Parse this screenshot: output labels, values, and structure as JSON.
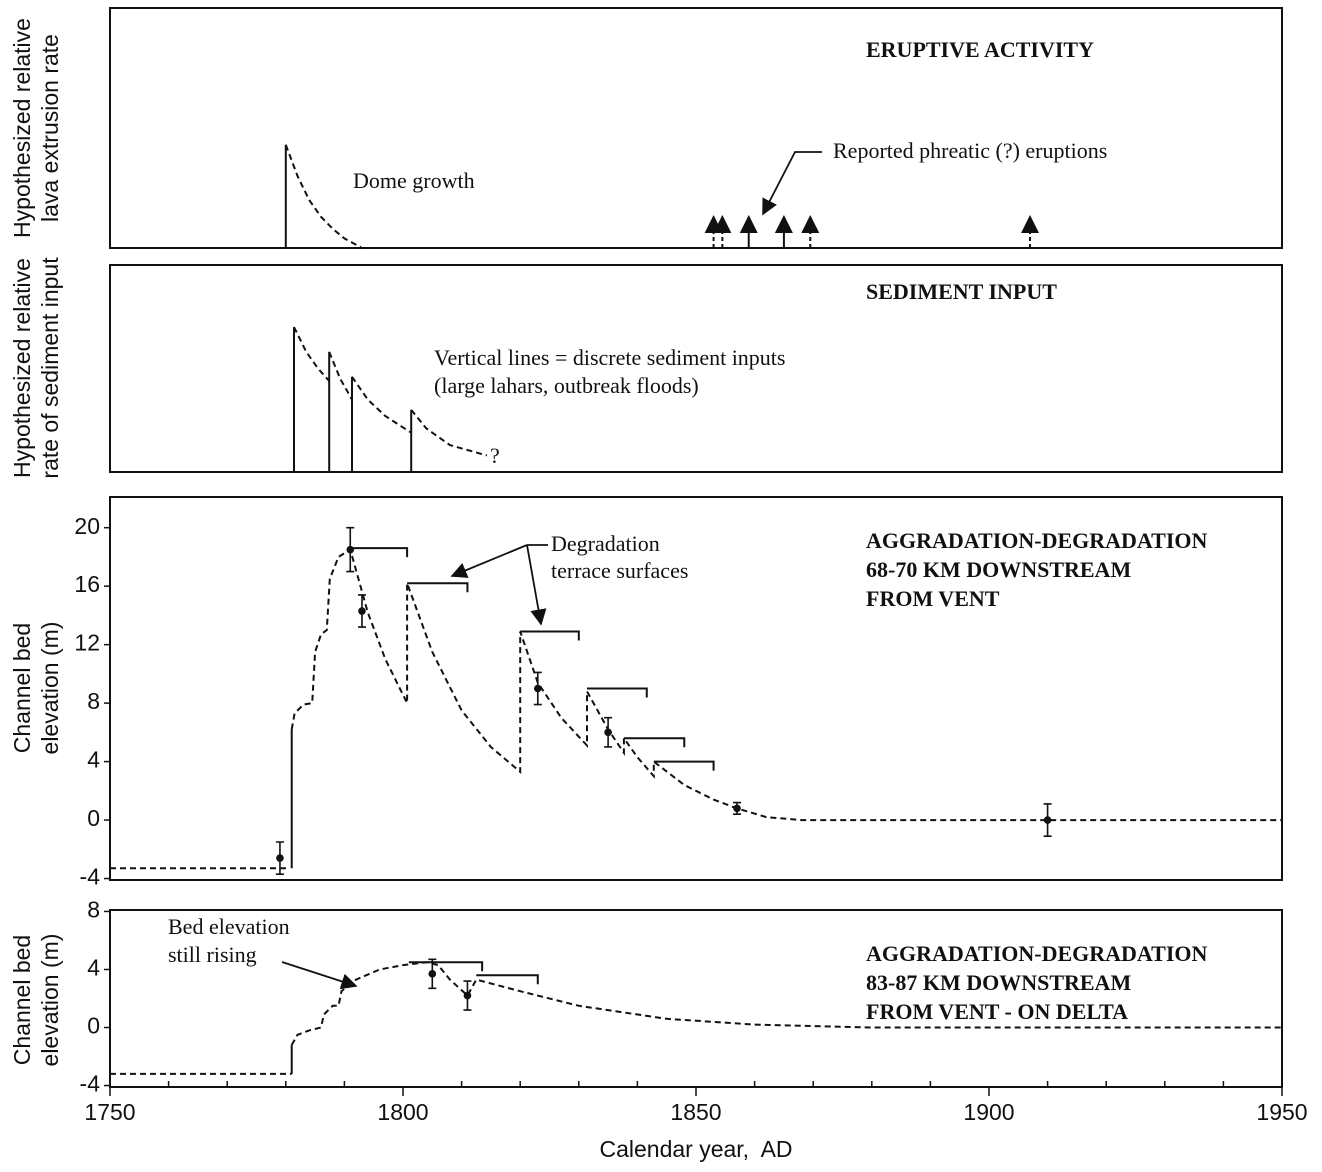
{
  "chart_data": [
    {
      "type": "line",
      "title": "ERUPTIVE ACTIVITY",
      "ylabel": [
        "Hypothesized relative",
        "lava extrusion rate"
      ],
      "annotations": [
        "Dome growth",
        "Reported phreatic (?) eruptions"
      ],
      "xlim": [
        1750,
        1950
      ],
      "ylim": [
        0,
        1
      ],
      "series": [
        {
          "style": "solid",
          "x": [
            1780,
            1780
          ],
          "values": [
            0,
            0.43
          ]
        },
        {
          "style": "dashed",
          "x": [
            1780,
            1782,
            1784,
            1786,
            1788,
            1790,
            1793
          ],
          "values": [
            0.43,
            0.3,
            0.2,
            0.13,
            0.08,
            0.04,
            0
          ]
        }
      ],
      "arrows": {
        "x": [
          1853,
          1854.5,
          1859,
          1865,
          1869.5,
          1907
        ],
        "values": [
          0.13,
          0.13,
          0.13,
          0.13,
          0.13,
          0.13
        ],
        "styles": [
          "dashed",
          "dashed",
          "solid",
          "solid",
          "dashed",
          "dashed"
        ]
      }
    },
    {
      "type": "line",
      "title": "SEDIMENT INPUT",
      "ylabel": [
        "Hypothesized relative",
        "rate of sediment input"
      ],
      "annotations": [
        "Vertical lines = discrete sediment inputs",
        "(large lahars, outbreak floods)",
        "?"
      ],
      "xlim": [
        1750,
        1950
      ],
      "ylim": [
        0,
        1
      ],
      "series": [
        {
          "style": "solid",
          "x": [
            1781.4,
            1781.4
          ],
          "values": [
            0,
            0.7
          ]
        },
        {
          "style": "solid",
          "x": [
            1787.4,
            1787.4
          ],
          "values": [
            0,
            0.58
          ]
        },
        {
          "style": "solid",
          "x": [
            1791.3,
            1791.3
          ],
          "values": [
            0,
            0.46
          ]
        },
        {
          "style": "solid",
          "x": [
            1801.4,
            1801.4
          ],
          "values": [
            0,
            0.3
          ]
        },
        {
          "style": "dashed",
          "x": [
            1781.4,
            1783.5,
            1785.5,
            1787.4
          ],
          "values": [
            0.7,
            0.58,
            0.5,
            0.44
          ]
        },
        {
          "style": "dashed",
          "x": [
            1787.4,
            1789.3,
            1791.3
          ],
          "values": [
            0.58,
            0.45,
            0.35
          ]
        },
        {
          "style": "dashed",
          "x": [
            1791.3,
            1794,
            1797,
            1801.4
          ],
          "values": [
            0.46,
            0.35,
            0.27,
            0.19
          ]
        },
        {
          "style": "dashed",
          "x": [
            1801.4,
            1804,
            1808,
            1814.3
          ],
          "values": [
            0.3,
            0.21,
            0.13,
            0.08
          ]
        }
      ]
    },
    {
      "type": "line",
      "title": [
        "AGGRADATION-DEGRADATION",
        "68-70 KM DOWNSTREAM",
        "FROM VENT"
      ],
      "ylabel": [
        "Channel bed",
        "elevation (m)"
      ],
      "annotations": [
        "Degradation",
        "terrace surfaces"
      ],
      "xlim": [
        1750,
        1950
      ],
      "ylim": [
        -4.1,
        22.1
      ],
      "yticks": [
        -4,
        0,
        4,
        8,
        12,
        16,
        20
      ],
      "series": [
        {
          "style": "dashed",
          "x": [
            1750,
            1780.5
          ],
          "values": [
            -3.3,
            -3.3
          ]
        },
        {
          "style": "solid",
          "x": [
            1781,
            1781
          ],
          "values": [
            -3.3,
            6.2
          ]
        },
        {
          "style": "dashed",
          "x": [
            1781,
            1781.5,
            1783,
            1784.5,
            1785,
            1786,
            1787,
            1787.5,
            1789,
            1791,
            1794,
            1797,
            1800.7,
            1800.7,
            1805,
            1810,
            1815,
            1820,
            1820,
            1823,
            1827,
            1831.4,
            1831.4,
            1835,
            1837.7,
            1837.7,
            1840,
            1842.8,
            1842.8,
            1848,
            1853,
            1857,
            1862,
            1868,
            1950
          ],
          "values": [
            6.2,
            7.3,
            7.9,
            8,
            11.5,
            12.7,
            13,
            16.5,
            18,
            18.5,
            14.2,
            11,
            8,
            16.2,
            11.5,
            7.5,
            5,
            3.3,
            12.9,
            9.4,
            7,
            5.1,
            8.8,
            6.2,
            4.6,
            5.6,
            4.3,
            3,
            4,
            2.4,
            1.4,
            0.8,
            0.2,
            0,
            0
          ]
        }
      ],
      "points": {
        "x": [
          1779,
          1791,
          1793,
          1823,
          1835,
          1857,
          1910
        ],
        "values": [
          -2.6,
          18.5,
          14.3,
          9,
          6,
          0.8,
          0
        ],
        "errors": [
          1.1,
          1.5,
          1.1,
          1.1,
          1,
          0.4,
          1.1
        ]
      },
      "terraces": {
        "x_start": [
          1791,
          1800.7,
          1820,
          1831.4,
          1837.7,
          1842.8
        ],
        "x_end": [
          1800.7,
          1811,
          1830,
          1841.6,
          1848,
          1853
        ],
        "values": [
          18.6,
          16.2,
          12.9,
          9,
          5.6,
          4
        ]
      }
    },
    {
      "type": "line",
      "title": [
        "AGGRADATION-DEGRADATION",
        "83-87 KM DOWNSTREAM",
        "FROM VENT - ON DELTA"
      ],
      "ylabel": [
        "Channel bed",
        "elevation (m)"
      ],
      "annotations": [
        "Bed elevation",
        "still rising"
      ],
      "xlabel": "Calendar year,  AD",
      "xlim": [
        1750,
        1950
      ],
      "ylim": [
        -4.1,
        8.1
      ],
      "yticks": [
        -4,
        0,
        4,
        8
      ],
      "xticks": [
        1750,
        1800,
        1850,
        1900,
        1950
      ],
      "xminorticks": [
        1760,
        1770,
        1780,
        1790,
        1810,
        1820,
        1830,
        1840,
        1860,
        1870,
        1880,
        1890,
        1910,
        1920,
        1930,
        1940
      ],
      "series": [
        {
          "style": "dashed",
          "x": [
            1750,
            1781
          ],
          "values": [
            -3.2,
            -3.2
          ]
        },
        {
          "style": "solid",
          "x": [
            1781,
            1781
          ],
          "values": [
            -3.2,
            -1.2
          ]
        },
        {
          "style": "dashed",
          "x": [
            1781,
            1782,
            1784,
            1786,
            1786.5,
            1788,
            1789,
            1789.5,
            1792,
            1796,
            1800,
            1804,
            1806,
            1808,
            1811,
            1812.5,
            1820,
            1830,
            1845,
            1860,
            1880,
            1950
          ],
          "values": [
            -1.2,
            -0.5,
            -0.2,
            0,
            0.9,
            1.5,
            1.5,
            2.5,
            3.3,
            4,
            4.3,
            4.5,
            4.3,
            3.3,
            2.2,
            3.3,
            2.5,
            1.5,
            0.6,
            0.2,
            0,
            0
          ]
        }
      ],
      "points": {
        "x": [
          1805,
          1811
        ],
        "values": [
          3.7,
          2.2
        ],
        "errors": [
          1,
          1
        ]
      },
      "terraces": {
        "x_start": [
          1801,
          1812.5
        ],
        "x_end": [
          1813.5,
          1823
        ],
        "values": [
          4.5,
          3.6
        ]
      }
    }
  ]
}
